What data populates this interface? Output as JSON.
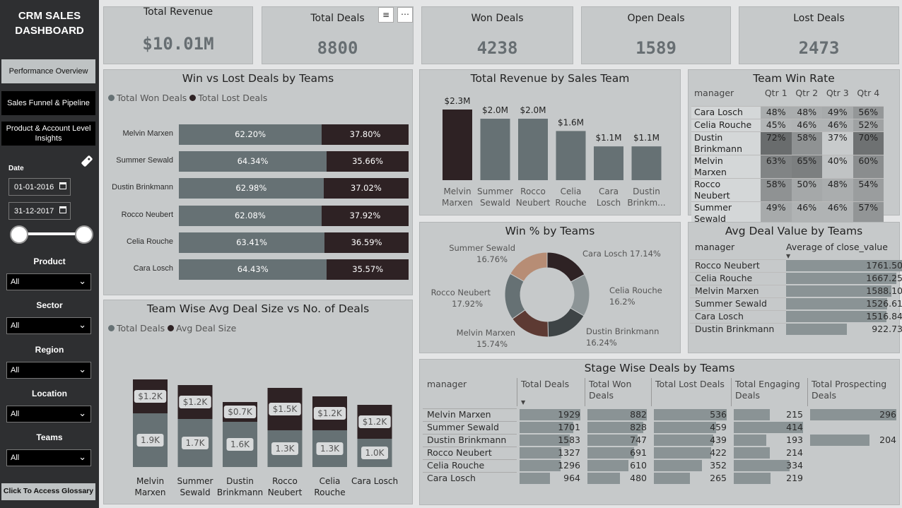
{
  "sidebar": {
    "title": "CRM SALES DASHBOARD",
    "nav": [
      "Performance Overview",
      "Sales Funnel & Pipeline",
      "Product & Account Level Insights"
    ],
    "date_label": "Date",
    "date_from": "01-01-2016",
    "date_to": "31-12-2017",
    "filters": [
      {
        "label": "Product",
        "value": "All"
      },
      {
        "label": "Sector",
        "value": "All"
      },
      {
        "label": "Region",
        "value": "All"
      },
      {
        "label": "Location",
        "value": "All"
      },
      {
        "label": "Teams",
        "value": "All"
      }
    ],
    "glossary": "Click To Access Glossary"
  },
  "kpis": [
    {
      "label": "Total Revenue",
      "value": "$10.01M"
    },
    {
      "label": "Total Deals",
      "value": "8800"
    },
    {
      "label": "Won Deals",
      "value": "4238"
    },
    {
      "label": "Open Deals",
      "value": "1589"
    },
    {
      "label": "Lost Deals",
      "value": "2473"
    }
  ],
  "colors": {
    "won": "#667174",
    "lost": "#2e2224",
    "bg": "#c6c9ca"
  },
  "winlost": {
    "title": "Win vs Lost Deals by Teams",
    "legend": [
      "Total Won Deals",
      "Total Lost Deals"
    ],
    "rows": [
      {
        "name": "Melvin Marxen",
        "won": 62.2,
        "won_l": "62.20%",
        "lost_l": "37.80%"
      },
      {
        "name": "Summer Sewald",
        "won": 64.34,
        "won_l": "64.34%",
        "lost_l": "35.66%"
      },
      {
        "name": "Dustin Brinkmann",
        "won": 62.98,
        "won_l": "62.98%",
        "lost_l": "37.02%"
      },
      {
        "name": "Rocco Neubert",
        "won": 62.08,
        "won_l": "62.08%",
        "lost_l": "37.92%"
      },
      {
        "name": "Celia Rouche",
        "won": 63.41,
        "won_l": "63.41%",
        "lost_l": "36.59%"
      },
      {
        "name": "Cara Losch",
        "won": 64.43,
        "won_l": "64.43%",
        "lost_l": "35.57%"
      }
    ]
  },
  "revenue": {
    "title": "Total Revenue by Sales Team",
    "bars": [
      {
        "name1": "Melvin",
        "name2": "Marxen",
        "value": 2.3,
        "label": "$2.3M"
      },
      {
        "name1": "Summer",
        "name2": "Sewald",
        "value": 2.0,
        "label": "$2.0M"
      },
      {
        "name1": "Rocco",
        "name2": "Neubert",
        "value": 2.0,
        "label": "$2.0M"
      },
      {
        "name1": "Celia",
        "name2": "Rouche",
        "value": 1.6,
        "label": "$1.6M"
      },
      {
        "name1": "Cara",
        "name2": "Losch",
        "value": 1.1,
        "label": "$1.1M"
      },
      {
        "name1": "Dustin",
        "name2": "Brinkm...",
        "value": 1.1,
        "label": "$1.1M"
      }
    ]
  },
  "winrate": {
    "title": "Team Win Rate",
    "headers": [
      "manager",
      "Qtr 1",
      "Qtr 2",
      "Qtr 3",
      "Qtr 4"
    ],
    "rows": [
      {
        "n": [
          "Cara Losch"
        ],
        "v": [
          "48%",
          "48%",
          "49%",
          "56%"
        ]
      },
      {
        "n": [
          "Celia Rouche"
        ],
        "v": [
          "45%",
          "46%",
          "46%",
          "52%"
        ]
      },
      {
        "n": [
          "Dustin",
          "Brinkmann"
        ],
        "v": [
          "72%",
          "58%",
          "37%",
          "70%"
        ]
      },
      {
        "n": [
          "Melvin Marxen"
        ],
        "v": [
          "63%",
          "65%",
          "40%",
          "60%"
        ]
      },
      {
        "n": [
          "Rocco Neubert"
        ],
        "v": [
          "58%",
          "50%",
          "48%",
          "54%"
        ]
      },
      {
        "n": [
          "Summer",
          "Sewald"
        ],
        "v": [
          "49%",
          "46%",
          "46%",
          "57%"
        ]
      }
    ]
  },
  "donut": {
    "title": "Win % by Teams",
    "slices": [
      {
        "name": "Cara Losch",
        "pct": 17.14,
        "label": "Cara Losch 17.14%",
        "color": "#2e2224"
      },
      {
        "name": "Celia Rouche",
        "pct": 16.2,
        "label": "Celia Rouche",
        "sub": "16.2%",
        "color": "#8c9496"
      },
      {
        "name": "Dustin Brinkmann",
        "pct": 16.24,
        "label": "Dustin Brinkmann",
        "sub": "16.24%",
        "color": "#3e4446"
      },
      {
        "name": "Melvin Marxen",
        "pct": 15.74,
        "label": "Melvin Marxen",
        "sub": "15.74%",
        "color": "#5d3a33"
      },
      {
        "name": "Rocco Neubert",
        "pct": 17.92,
        "label": "Rocco Neubert",
        "sub": "17.92%",
        "color": "#667174"
      },
      {
        "name": "Summer Sewald",
        "pct": 16.76,
        "label": "Summer Sewald",
        "sub": "16.76%",
        "color": "#b78d75"
      }
    ]
  },
  "avgdeal": {
    "title": "Avg Deal Value by Teams",
    "headers": [
      "manager",
      "Average of close_value"
    ],
    "rows": [
      {
        "name": "Rocco Neubert",
        "value": 1761.5,
        "label": "1761.50"
      },
      {
        "name": "Celia Rouche",
        "value": 1667.25,
        "label": "1667.25"
      },
      {
        "name": "Melvin Marxen",
        "value": 1588.1,
        "label": "1588.10"
      },
      {
        "name": "Summer Sewald",
        "value": 1526.61,
        "label": "1526.61"
      },
      {
        "name": "Cara Losch",
        "value": 1516.84,
        "label": "1516.84"
      },
      {
        "name": "Dustin Brinkmann",
        "value": 922.73,
        "label": "922.73"
      }
    ]
  },
  "teamwise": {
    "title": "Team Wise Avg Deal Size vs No. of Deals",
    "legend": [
      "Total Deals",
      "Avg Deal Size"
    ],
    "bars": [
      {
        "n1": "Melvin",
        "n2": "Marxen",
        "deals": 1.9,
        "deals_l": "1.9K",
        "size": 1.2,
        "size_l": "$1.2K"
      },
      {
        "n1": "Summer",
        "n2": "Sewald",
        "deals": 1.7,
        "deals_l": "1.7K",
        "size": 1.2,
        "size_l": "$1.2K"
      },
      {
        "n1": "Dustin",
        "n2": "Brinkmann",
        "deals": 1.6,
        "deals_l": "1.6K",
        "size": 0.7,
        "size_l": "$0.7K"
      },
      {
        "n1": "Rocco",
        "n2": "Neubert",
        "deals": 1.3,
        "deals_l": "1.3K",
        "size": 1.5,
        "size_l": "$1.5K"
      },
      {
        "n1": "Celia",
        "n2": "Rouche",
        "deals": 1.3,
        "deals_l": "1.3K",
        "size": 1.2,
        "size_l": "$1.2K"
      },
      {
        "n1": "Cara Losch",
        "n2": "",
        "deals": 1.0,
        "deals_l": "1.0K",
        "size": 1.2,
        "size_l": "$1.2K"
      }
    ]
  },
  "stage": {
    "title": "Stage Wise Deals by Teams",
    "headers": [
      [
        "manager"
      ],
      [
        "Total Deals"
      ],
      [
        "Total Won",
        "Deals"
      ],
      [
        "Total Lost Deals"
      ],
      [
        "Total Engaging",
        "Deals"
      ],
      [
        "Total Prospecting",
        "Deals"
      ]
    ],
    "rows": [
      {
        "name": "Melvin Marxen",
        "v": [
          1929,
          882,
          536,
          215,
          296
        ]
      },
      {
        "name": "Summer Sewald",
        "v": [
          1701,
          828,
          459,
          414,
          null
        ]
      },
      {
        "name": "Dustin Brinkmann",
        "v": [
          1583,
          747,
          439,
          193,
          204
        ]
      },
      {
        "name": "Rocco Neubert",
        "v": [
          1327,
          691,
          422,
          214,
          null
        ]
      },
      {
        "name": "Celia Rouche",
        "v": [
          1296,
          610,
          352,
          334,
          null
        ]
      },
      {
        "name": "Cara Losch",
        "v": [
          964,
          480,
          265,
          219,
          null
        ]
      }
    ]
  }
}
